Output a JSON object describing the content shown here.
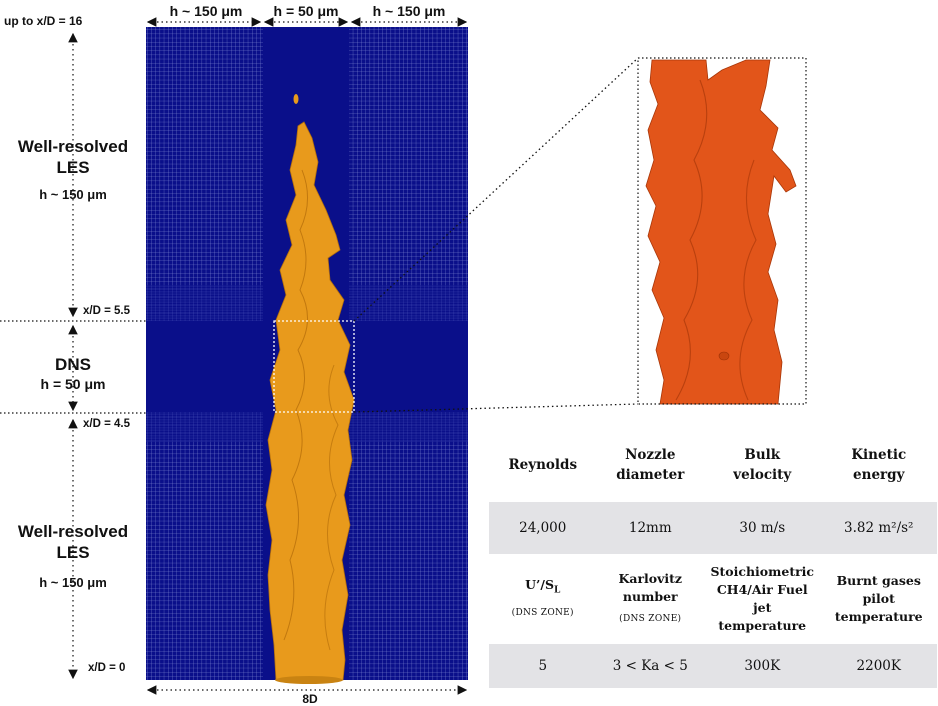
{
  "top_labels": {
    "up_to": "up to x/D = 16",
    "h_left": "h ~ 150 μm",
    "h_center": "h = 50 μm",
    "h_right": "h ~ 150 μm"
  },
  "zones": {
    "les_top_title": "Well-resolved LES",
    "les_top_h": "h ~ 150 μm",
    "dns_title": "DNS",
    "dns_h": "h = 50 μm",
    "les_bottom_title": "Well-resolved LES",
    "les_bottom_h": "h ~ 150 μm"
  },
  "markers": {
    "xd_55": "x/D = 5.5",
    "xd_45": "x/D = 4.5",
    "xd_0": "x/D = 0",
    "width": "8D"
  },
  "colors": {
    "mesh": "#0a0f8a",
    "flame": "#e89a1c",
    "zoom_flame": "#e2551a",
    "table_band": "#e3e3e6"
  },
  "params": {
    "row1": {
      "reynolds": "Reynolds",
      "nozzle": "Nozzle diameter",
      "bulk": "Bulk velocity",
      "kinetic": "Kinetic energy"
    },
    "row1_values": {
      "reynolds": "24,000",
      "nozzle": "12mm",
      "bulk": "30 m/s",
      "kinetic": "3.82 m²/s²"
    },
    "row2": {
      "u_sl": "U’/S",
      "u_sl_sub": "L",
      "u_sl_note": "(DNS ZONE)",
      "karlovitz": "Karlovitz number",
      "karlovitz_note": "(DNS ZONE)",
      "stoich": "Stoichiometric CH4/Air Fuel jet temperature",
      "burnt": "Burnt gases pilot temperature"
    },
    "row2_values": {
      "u_sl": "5",
      "karlovitz": "3 < Ka < 5",
      "stoich": "300K",
      "burnt": "2200K"
    }
  }
}
